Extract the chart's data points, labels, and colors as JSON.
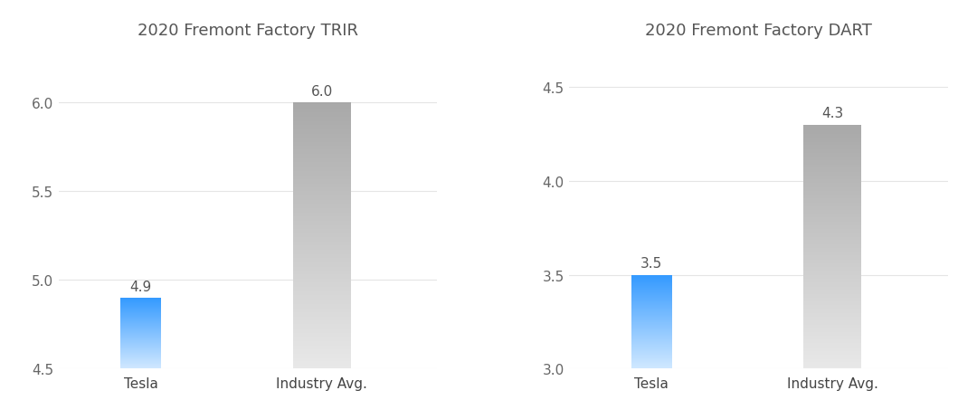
{
  "chart1": {
    "title": "2020 Fremont Factory TRIR",
    "categories": [
      "Tesla",
      "Industry Avg."
    ],
    "values": [
      4.9,
      6.0
    ],
    "ylim": [
      4.5,
      6.3
    ],
    "yticks": [
      4.5,
      5.0,
      5.5,
      6.0
    ]
  },
  "chart2": {
    "title": "2020 Fremont Factory DART",
    "categories": [
      "Tesla",
      "Industry Avg."
    ],
    "values": [
      3.5,
      4.3
    ],
    "ylim": [
      3.0,
      4.7
    ],
    "yticks": [
      3.0,
      3.5,
      4.0,
      4.5
    ]
  },
  "tesla_color_top": "#3399FF",
  "tesla_color_bottom": "#D0E8FF",
  "industry_color_top": "#A8A8A8",
  "industry_color_bottom": "#E8E8E8",
  "background_color": "#FFFFFF",
  "title_fontsize": 13,
  "label_fontsize": 11,
  "tick_fontsize": 11,
  "value_fontsize": 11,
  "bar_width": 0.25,
  "bar_x_tesla": 0.7,
  "bar_x_industry": 1.8,
  "xlim": [
    0.2,
    2.5
  ]
}
